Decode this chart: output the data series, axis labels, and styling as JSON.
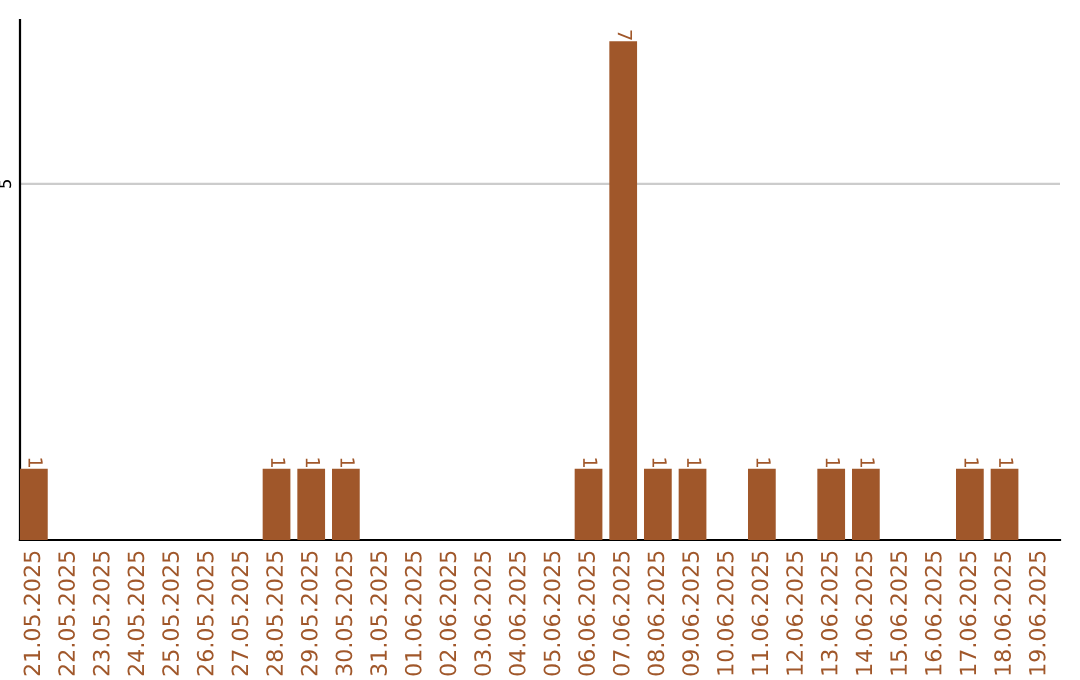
{
  "chart_data": {
    "type": "bar",
    "categories": [
      "21.05.2025",
      "22.05.2025",
      "23.05.2025",
      "24.05.2025",
      "25.05.2025",
      "26.05.2025",
      "27.05.2025",
      "28.05.2025",
      "29.05.2025",
      "30.05.2025",
      "31.05.2025",
      "01.06.2025",
      "02.06.2025",
      "03.06.2025",
      "04.06.2025",
      "05.06.2025",
      "06.06.2025",
      "07.06.2025",
      "08.06.2025",
      "09.06.2025",
      "10.06.2025",
      "11.06.2025",
      "12.06.2025",
      "13.06.2025",
      "14.06.2025",
      "15.06.2025",
      "16.06.2025",
      "17.06.2025",
      "18.06.2025",
      "19.06.2025"
    ],
    "values": [
      1,
      0,
      0,
      0,
      0,
      0,
      0,
      1,
      1,
      1,
      0,
      0,
      0,
      0,
      0,
      0,
      1,
      7,
      1,
      1,
      0,
      1,
      0,
      1,
      1,
      0,
      0,
      1,
      1,
      0
    ],
    "value_labels": [
      "1",
      null,
      null,
      null,
      null,
      null,
      null,
      "1",
      "1",
      "1",
      null,
      null,
      null,
      null,
      null,
      null,
      "1",
      "7",
      "1",
      "1",
      null,
      "1",
      null,
      "1",
      "1",
      null,
      null,
      "1",
      "1",
      null
    ],
    "color": "#a0572a",
    "ylim": [
      0,
      7.3
    ],
    "yticks": [
      5
    ],
    "grid": "y"
  }
}
